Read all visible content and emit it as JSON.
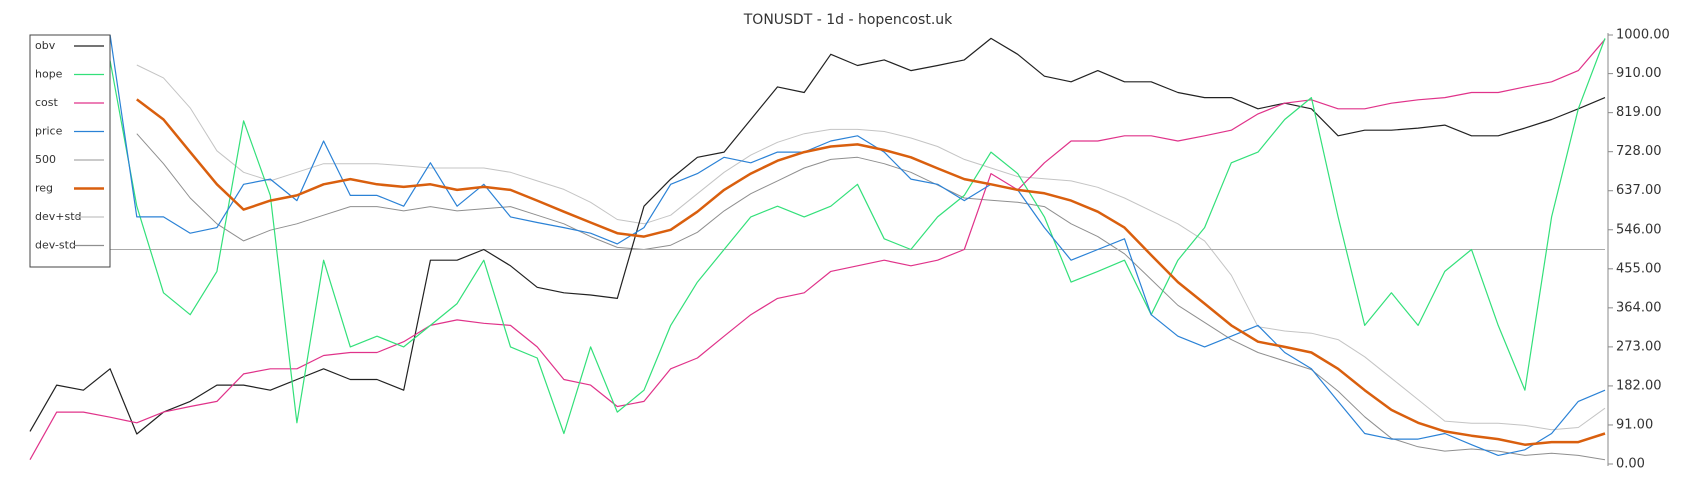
{
  "chart_data": {
    "type": "line",
    "title": "TONUSDT - 1d - hopencost.uk",
    "ylim": [
      0,
      1000
    ],
    "yticks": [
      {
        "value": 0,
        "label": "0.00"
      },
      {
        "value": 91,
        "label": "91.00"
      },
      {
        "value": 182,
        "label": "182.00"
      },
      {
        "value": 273,
        "label": "273.00"
      },
      {
        "value": 364,
        "label": "364.00"
      },
      {
        "value": 455,
        "label": "455.00"
      },
      {
        "value": 546,
        "label": "546.00"
      },
      {
        "value": 637,
        "label": "637.00"
      },
      {
        "value": 728,
        "label": "728.00"
      },
      {
        "value": 819,
        "label": "819.00"
      },
      {
        "value": 910,
        "label": "910.00"
      },
      {
        "value": 1000,
        "label": "1000.00"
      }
    ],
    "legend": "upper left",
    "series": [
      {
        "name": "obv",
        "color": "#222222",
        "values": [
          76,
          184,
          172,
          222,
          70,
          121,
          146,
          184,
          184,
          172,
          197,
          222,
          197,
          197,
          172,
          475,
          475,
          500,
          462,
          412,
          399,
          394,
          386,
          601,
          664,
          715,
          727,
          803,
          879,
          866,
          955,
          929,
          942,
          917,
          929,
          942,
          992,
          955,
          904,
          891,
          917,
          891,
          891,
          866,
          854,
          854,
          828,
          841,
          828,
          765,
          778,
          778,
          783,
          790,
          765,
          765,
          783,
          803,
          828,
          854
        ]
      },
      {
        "name": "hope",
        "color": "#33e07a",
        "values": [
          null,
          null,
          null,
          940,
          601,
          399,
          348,
          449,
          800,
          626,
          96,
          475,
          273,
          298,
          273,
          323,
          374,
          475,
          273,
          247,
          71,
          273,
          121,
          172,
          323,
          424,
          500,
          576,
          601,
          576,
          601,
          652,
          525,
          500,
          576,
          626,
          727,
          677,
          576,
          424,
          449,
          475,
          348,
          475,
          551,
          702,
          727,
          803,
          854,
          576,
          323,
          399,
          323,
          449,
          500,
          323,
          172,
          576,
          828,
          992
        ]
      },
      {
        "name": "cost",
        "color": "#e0338a",
        "values": [
          10,
          121,
          121,
          109,
          96,
          121,
          134,
          146,
          210,
          222,
          222,
          253,
          260,
          260,
          285,
          323,
          336,
          328,
          323,
          273,
          197,
          184,
          134,
          146,
          222,
          247,
          298,
          348,
          386,
          399,
          449,
          462,
          475,
          462,
          475,
          500,
          677,
          639,
          702,
          753,
          753,
          765,
          765,
          753,
          765,
          778,
          816,
          841,
          849,
          828,
          828,
          841,
          849,
          854,
          866,
          866,
          879,
          891,
          917,
          990
        ]
      },
      {
        "name": "price",
        "color": "#2b82d6",
        "values": [
          null,
          null,
          null,
          1000,
          576,
          576,
          538,
          551,
          652,
          664,
          614,
          753,
          626,
          626,
          601,
          702,
          601,
          652,
          576,
          563,
          551,
          538,
          513,
          551,
          652,
          677,
          715,
          702,
          727,
          727,
          753,
          765,
          727,
          664,
          652,
          614,
          652,
          639,
          551,
          475,
          500,
          525,
          348,
          298,
          273,
          298,
          323,
          260,
          222,
          146,
          71,
          58,
          58,
          71,
          45,
          20,
          33,
          71,
          146,
          172
        ]
      },
      {
        "name": "500",
        "color": "#aaaaaa",
        "values": [
          500,
          500,
          500,
          500,
          500,
          500,
          500,
          500,
          500,
          500,
          500,
          500,
          500,
          500,
          500,
          500,
          500,
          500,
          500,
          500,
          500,
          500,
          500,
          500,
          500,
          500,
          500,
          500,
          500,
          500,
          500,
          500,
          500,
          500,
          500,
          500,
          500,
          500,
          500,
          500,
          500,
          500,
          500,
          500,
          500,
          500,
          500,
          500,
          500,
          500,
          500,
          500,
          500,
          500,
          500,
          500,
          500,
          500,
          500,
          500
        ]
      },
      {
        "name": "reg",
        "color": "#d95f0e",
        "values": [
          null,
          null,
          null,
          null,
          850,
          803,
          727,
          652,
          593,
          614,
          626,
          652,
          664,
          652,
          646,
          652,
          639,
          646,
          639,
          614,
          588,
          563,
          538,
          530,
          546,
          588,
          639,
          677,
          707,
          727,
          740,
          745,
          732,
          715,
          689,
          664,
          652,
          639,
          631,
          614,
          588,
          551,
          487,
          424,
          374,
          323,
          285,
          273,
          260,
          222,
          172,
          126,
          96,
          76,
          66,
          58,
          45,
          51,
          51,
          71
        ]
      },
      {
        "name": "dev+std",
        "color": "#c4c4c4",
        "values": [
          null,
          null,
          null,
          null,
          930,
          900,
          830,
          730,
          680,
          660,
          680,
          700,
          700,
          700,
          695,
          690,
          690,
          690,
          680,
          660,
          640,
          610,
          570,
          560,
          580,
          630,
          680,
          720,
          750,
          770,
          780,
          780,
          775,
          760,
          740,
          710,
          690,
          670,
          665,
          660,
          645,
          620,
          590,
          560,
          520,
          440,
          320,
          310,
          305,
          290,
          250,
          200,
          150,
          100,
          95,
          95,
          90,
          80,
          85,
          130
        ]
      },
      {
        "name": "dev-std",
        "color": "#8f8f8f",
        "values": [
          null,
          null,
          null,
          null,
          770,
          700,
          620,
          560,
          520,
          545,
          560,
          580,
          600,
          600,
          590,
          600,
          590,
          595,
          600,
          580,
          560,
          530,
          505,
          500,
          510,
          540,
          590,
          630,
          660,
          690,
          710,
          715,
          700,
          680,
          650,
          620,
          615,
          610,
          600,
          560,
          530,
          490,
          430,
          370,
          330,
          290,
          260,
          240,
          220,
          170,
          110,
          60,
          40,
          30,
          35,
          30,
          20,
          25,
          20,
          10
        ]
      }
    ]
  }
}
